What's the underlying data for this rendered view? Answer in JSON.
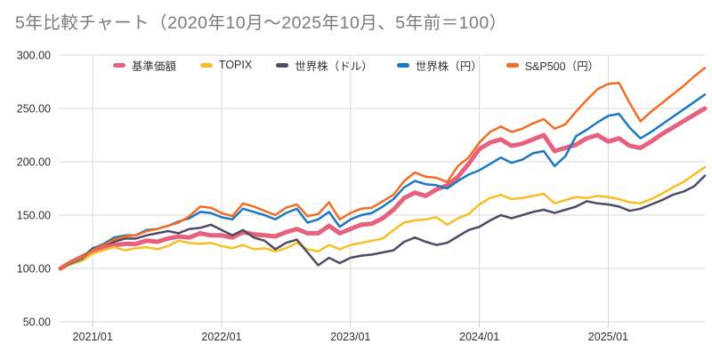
{
  "chart_data": {
    "type": "line",
    "title": "5年比較チャート（2020年10月〜2025年10月、5年前＝100）",
    "x_start": "2020/10",
    "x_end": "2025/10",
    "x_interval": "monthly",
    "x_axis_ticks": [
      "2021/01",
      "2022/01",
      "2023/01",
      "2024/01",
      "2025/01"
    ],
    "x_tick_indices": [
      3,
      15,
      27,
      39,
      51
    ],
    "y_ticks": [
      50,
      100,
      150,
      200,
      250,
      300
    ],
    "y_tick_labels": [
      "50.00",
      "100.00",
      "150.00",
      "200.00",
      "250.00",
      "300.00"
    ],
    "ylim": [
      50,
      300
    ],
    "grid": true,
    "legend_position": "top",
    "colors": {
      "grid": "#dadada",
      "axis_text": "#2f2f2f",
      "title_text": "#7b7b7b"
    },
    "series": [
      {
        "key": "fund-price",
        "name": "基準価額",
        "color": "#e5617d",
        "width": 5,
        "values": [
          100,
          106,
          111,
          115,
          119,
          122,
          123,
          123,
          126,
          125,
          128,
          130,
          129,
          133,
          131,
          131,
          129,
          134,
          132,
          131,
          130,
          134,
          137,
          133,
          133,
          140,
          133,
          137,
          141,
          142,
          147,
          155,
          166,
          171,
          168,
          174,
          178,
          186,
          198,
          212,
          218,
          221,
          215,
          217,
          221,
          225,
          210,
          213,
          216,
          222,
          225,
          219,
          222,
          215,
          213,
          219,
          226,
          232,
          238,
          244,
          250
        ]
      },
      {
        "key": "topix",
        "name": "TOPIX",
        "color": "#fabd24",
        "width": 2.5,
        "values": [
          100,
          104,
          107,
          114,
          117,
          120,
          117,
          119,
          120,
          118,
          121,
          126,
          124,
          123,
          124,
          121,
          119,
          122,
          118,
          119,
          116,
          119,
          124,
          118,
          116,
          122,
          118,
          122,
          124,
          126,
          128,
          136,
          143,
          145,
          146,
          148,
          141,
          147,
          151,
          160,
          166,
          169,
          165,
          166,
          168,
          170,
          161,
          164,
          167,
          166,
          168,
          167,
          165,
          162,
          161,
          165,
          170,
          176,
          181,
          188,
          195
        ]
      },
      {
        "key": "world-usd",
        "name": "世界株（ドル）",
        "color": "#4d4b66",
        "width": 2.5,
        "values": [
          100,
          105,
          110,
          119,
          122,
          125,
          128,
          128,
          131,
          133,
          135,
          133,
          137,
          138,
          141,
          136,
          131,
          136,
          129,
          126,
          118,
          124,
          127,
          115,
          103,
          110,
          105,
          110,
          112,
          113,
          115,
          117,
          125,
          129,
          125,
          122,
          124,
          130,
          136,
          139,
          145,
          150,
          147,
          150,
          153,
          155,
          152,
          155,
          158,
          163,
          161,
          160,
          158,
          154,
          156,
          160,
          164,
          169,
          172,
          177,
          187
        ]
      },
      {
        "key": "world-jpy",
        "name": "世界株（円）",
        "color": "#1a78c2",
        "width": 2.5,
        "values": [
          100,
          105,
          109,
          118,
          123,
          129,
          131,
          131,
          136,
          137,
          140,
          144,
          147,
          153,
          152,
          148,
          146,
          156,
          153,
          150,
          146,
          152,
          156,
          143,
          146,
          153,
          139,
          146,
          150,
          152,
          158,
          165,
          176,
          182,
          179,
          178,
          175,
          182,
          188,
          192,
          198,
          204,
          199,
          202,
          208,
          210,
          196,
          205,
          224,
          230,
          237,
          243,
          245,
          232,
          222,
          228,
          235,
          242,
          249,
          256,
          263
        ]
      },
      {
        "key": "sp500-jpy",
        "name": "S&P500（円）",
        "color": "#f36c21",
        "width": 2.5,
        "values": [
          100,
          106,
          110,
          117,
          122,
          127,
          130,
          131,
          135,
          137,
          140,
          143,
          149,
          158,
          157,
          152,
          149,
          161,
          158,
          154,
          150,
          157,
          160,
          149,
          151,
          162,
          146,
          152,
          156,
          157,
          163,
          169,
          182,
          190,
          186,
          185,
          181,
          196,
          204,
          218,
          228,
          233,
          228,
          231,
          236,
          240,
          231,
          235,
          247,
          258,
          268,
          273,
          274,
          255,
          238,
          247,
          255,
          263,
          271,
          280,
          288
        ]
      }
    ]
  }
}
